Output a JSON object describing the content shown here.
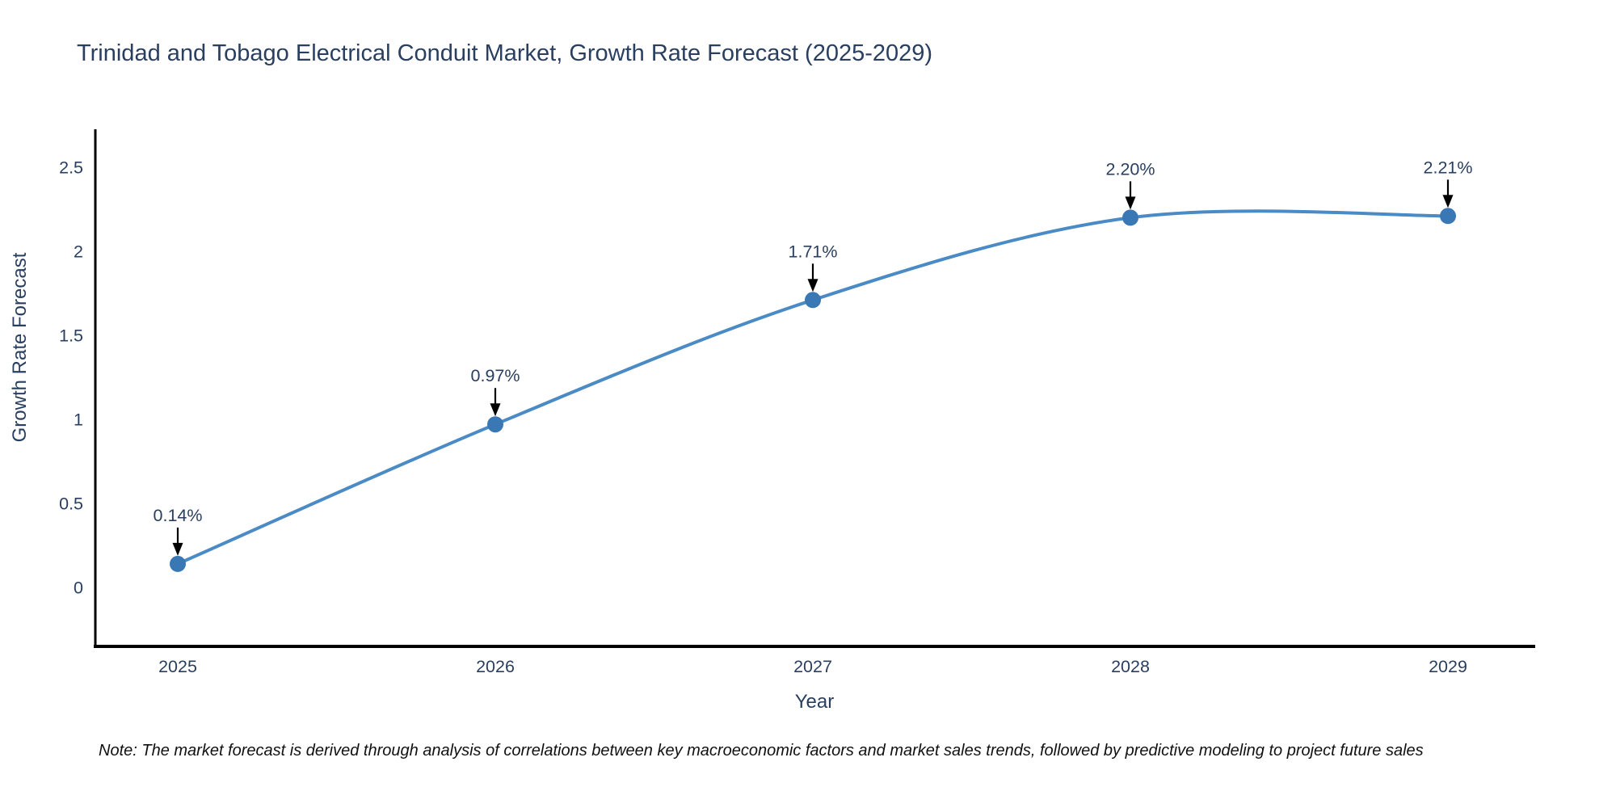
{
  "chart_data": {
    "type": "line",
    "title": "Trinidad and Tobago Electrical Conduit Market, Growth Rate Forecast (2025-2029)",
    "xlabel": "Year",
    "ylabel": "Growth Rate Forecast",
    "categories": [
      "2025",
      "2026",
      "2027",
      "2028",
      "2029"
    ],
    "series": [
      {
        "name": "Growth Rate Forecast",
        "values": [
          0.14,
          0.97,
          1.71,
          2.2,
          2.21
        ],
        "point_labels": [
          "0.14%",
          "0.97%",
          "1.71%",
          "2.20%",
          "2.21%"
        ]
      }
    ],
    "yticks": [
      0,
      0.5,
      1,
      1.5,
      2,
      2.5
    ],
    "ylim": [
      -0.37,
      2.73
    ],
    "grid": false,
    "legend_position": "none",
    "line_shape": "spline",
    "annotations_style": "value labels with downward black arrows onto each point",
    "colors": {
      "line": "#4a8ac5",
      "marker": "#3a78b5",
      "axis": "#000000",
      "text": "#2a3f5f",
      "arrow": "#000000",
      "note_text": "#111111"
    },
    "note": "Note: The market forecast is derived through analysis of correlations between key macroeconomic factors and market sales trends, followed by predictive modeling to project future sales"
  }
}
